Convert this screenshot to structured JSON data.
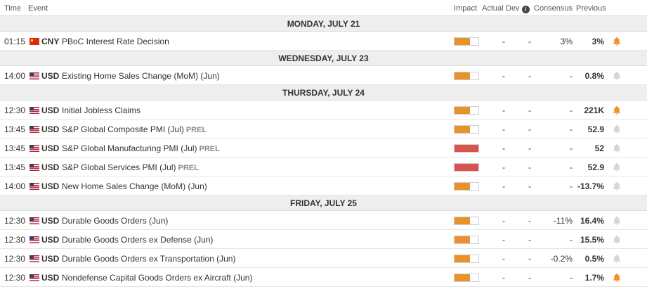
{
  "columns": {
    "time": "Time",
    "event": "Event",
    "impact": "Impact",
    "actual": "Actual",
    "dev": "Dev",
    "consensus": "Consensus",
    "previous": "Previous"
  },
  "colors": {
    "impact_medium": "#e8922b",
    "impact_high": "#d9534f",
    "bell_active": "#f0932b",
    "bell_inactive": "#d6d6d6"
  },
  "days": [
    {
      "label": "MONDAY, JULY 21",
      "events": [
        {
          "time": "01:15",
          "flag": "cn-flag-icon",
          "currency": "CNY",
          "name": "PBoC Interest Rate Decision",
          "prel": "",
          "impact": "medium",
          "impact_level": 0.66,
          "actual": "-",
          "dev": "-",
          "consensus": "3%",
          "previous": "3%",
          "alert": true
        }
      ]
    },
    {
      "label": "WEDNESDAY, JULY 23",
      "events": [
        {
          "time": "14:00",
          "flag": "us-flag-icon",
          "currency": "USD",
          "name": "Existing Home Sales Change (MoM) (Jun)",
          "prel": "",
          "impact": "medium",
          "impact_level": 0.66,
          "actual": "-",
          "dev": "-",
          "consensus": "-",
          "previous": "0.8%",
          "alert": false
        }
      ]
    },
    {
      "label": "THURSDAY, JULY 24",
      "events": [
        {
          "time": "12:30",
          "flag": "us-flag-icon",
          "currency": "USD",
          "name": "Initial Jobless Claims",
          "prel": "",
          "impact": "medium",
          "impact_level": 0.66,
          "actual": "-",
          "dev": "-",
          "consensus": "-",
          "previous": "221K",
          "alert": true
        },
        {
          "time": "13:45",
          "flag": "us-flag-icon",
          "currency": "USD",
          "name": "S&P Global Composite PMI (Jul)",
          "prel": "PREL",
          "impact": "medium",
          "impact_level": 0.66,
          "actual": "-",
          "dev": "-",
          "consensus": "-",
          "previous": "52.9",
          "alert": false
        },
        {
          "time": "13:45",
          "flag": "us-flag-icon",
          "currency": "USD",
          "name": "S&P Global Manufacturing PMI (Jul)",
          "prel": "PREL",
          "impact": "high",
          "impact_level": 1,
          "actual": "-",
          "dev": "-",
          "consensus": "-",
          "previous": "52",
          "alert": false
        },
        {
          "time": "13:45",
          "flag": "us-flag-icon",
          "currency": "USD",
          "name": "S&P Global Services PMI (Jul)",
          "prel": "PREL",
          "impact": "high",
          "impact_level": 1,
          "actual": "-",
          "dev": "-",
          "consensus": "-",
          "previous": "52.9",
          "alert": false
        },
        {
          "time": "14:00",
          "flag": "us-flag-icon",
          "currency": "USD",
          "name": "New Home Sales Change (MoM) (Jun)",
          "prel": "",
          "impact": "medium",
          "impact_level": 0.66,
          "actual": "-",
          "dev": "-",
          "consensus": "-",
          "previous": "-13.7%",
          "alert": false
        }
      ]
    },
    {
      "label": "FRIDAY, JULY 25",
      "events": [
        {
          "time": "12:30",
          "flag": "us-flag-icon",
          "currency": "USD",
          "name": "Durable Goods Orders (Jun)",
          "prel": "",
          "impact": "medium",
          "impact_level": 0.66,
          "actual": "-",
          "dev": "-",
          "consensus": "-11%",
          "previous": "16.4%",
          "alert": false
        },
        {
          "time": "12:30",
          "flag": "us-flag-icon",
          "currency": "USD",
          "name": "Durable Goods Orders ex Defense (Jun)",
          "prel": "",
          "impact": "medium",
          "impact_level": 0.66,
          "actual": "-",
          "dev": "-",
          "consensus": "-",
          "previous": "15.5%",
          "alert": false
        },
        {
          "time": "12:30",
          "flag": "us-flag-icon",
          "currency": "USD",
          "name": "Durable Goods Orders ex Transportation (Jun)",
          "prel": "",
          "impact": "medium",
          "impact_level": 0.66,
          "actual": "-",
          "dev": "-",
          "consensus": "-0.2%",
          "previous": "0.5%",
          "alert": false
        },
        {
          "time": "12:30",
          "flag": "us-flag-icon",
          "currency": "USD",
          "name": "Nondefense Capital Goods Orders ex Aircraft (Jun)",
          "prel": "",
          "impact": "medium",
          "impact_level": 0.66,
          "actual": "-",
          "dev": "-",
          "consensus": "-",
          "previous": "1.7%",
          "alert": true
        }
      ]
    }
  ]
}
